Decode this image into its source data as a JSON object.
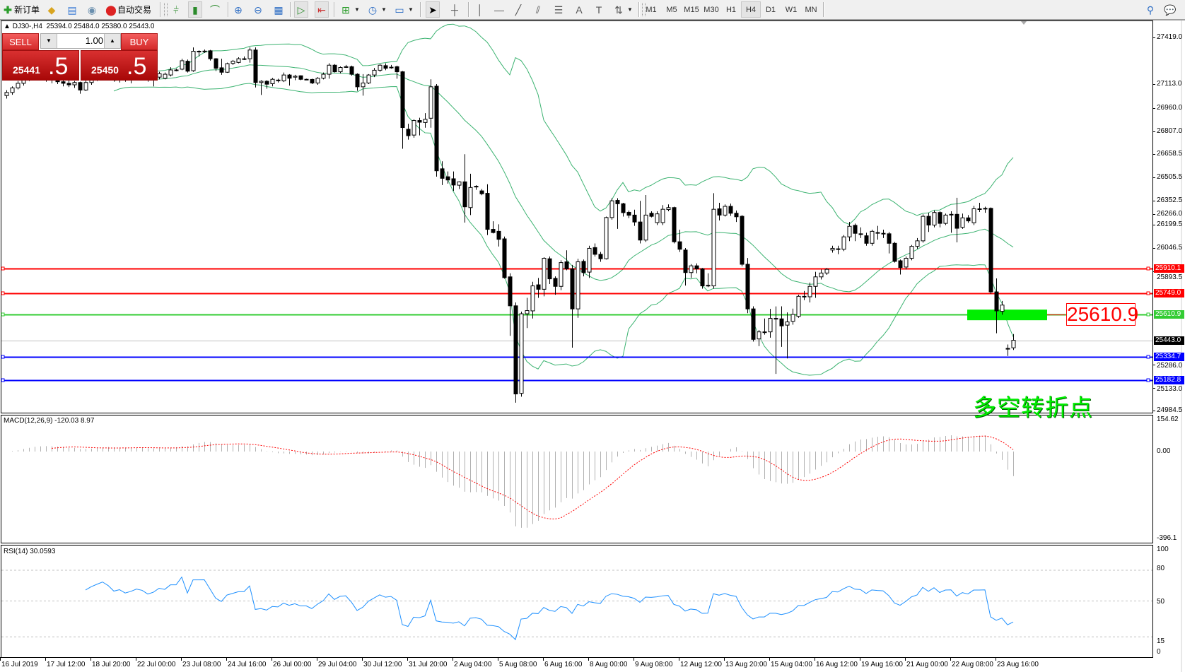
{
  "toolbar": {
    "new_order": "新订单",
    "auto_trading": "自动交易",
    "timeframes": [
      "M1",
      "M5",
      "M15",
      "M30",
      "H1",
      "H4",
      "D1",
      "W1",
      "MN"
    ],
    "active_timeframe": "H4"
  },
  "chart_header": {
    "symbol": "DJ30-,H4",
    "ohlc": "25394.0 25484.0 25380.0 25443.0"
  },
  "trade_panel": {
    "sell_label": "SELL",
    "buy_label": "BUY",
    "lot": "1.00",
    "sell_price_main": "25441",
    "sell_price_pips": ".5",
    "buy_price_main": "25450",
    "buy_price_pips": ".5"
  },
  "annotation": {
    "callout_price": "25610.9",
    "text": "多空转折点",
    "text_color": "#00ee00",
    "zone_color": "#00ee00"
  },
  "levels": [
    {
      "price": 25910.1,
      "label": "25910.1",
      "color": "#ff0000"
    },
    {
      "price": 25749.0,
      "label": "25749.0",
      "color": "#ff0000"
    },
    {
      "price": 25610.9,
      "label": "25610.9",
      "color": "#33cc33"
    },
    {
      "price": 25443.0,
      "label": "25443.0",
      "color": "#000000",
      "line_color": "#c0c0c0"
    },
    {
      "price": 25334.7,
      "label": "25334.7",
      "color": "#0000ff"
    },
    {
      "price": 25182.8,
      "label": "25182.8",
      "color": "#0000ff"
    }
  ],
  "indicators": {
    "macd_label": "MACD(12,26,9) -120.03 8.97",
    "rsi_label": "RSI(14) 30.0593",
    "macd_axis": [
      "154.62",
      "0.00",
      "-396.1"
    ],
    "rsi_axis": [
      "100",
      "80",
      "50",
      "15",
      "0"
    ]
  },
  "chart_data": {
    "type": "candlestick",
    "symbol": "DJ30-",
    "timeframe": "H4",
    "price_ticks": [
      "27419.0",
      "26266.0",
      "27113.0",
      "26960.0",
      "26807.0",
      "26658.5",
      "26505.5",
      "26352.5",
      "26199.5",
      "26046.5",
      "25893.5",
      "25286.0",
      "25133.0",
      "24984.5"
    ],
    "ylim": [
      24984.5,
      27419.0
    ],
    "time_labels": [
      "16 Jul 2019",
      "17 Jul 12:00",
      "18 Jul 20:00",
      "22 Jul 00:00",
      "23 Jul 08:00",
      "24 Jul 16:00",
      "26 Jul 00:00",
      "29 Jul 04:00",
      "30 Jul 12:00",
      "31 Jul 20:00",
      "2 Aug 04:00",
      "5 Aug 08:00",
      "6 Aug 16:00",
      "8 Aug 00:00",
      "9 Aug 08:00",
      "12 Aug 12:00",
      "13 Aug 20:00",
      "15 Aug 04:00",
      "16 Aug 12:00",
      "19 Aug 16:00",
      "21 Aug 00:00",
      "22 Aug 08:00",
      "23 Aug 16:00"
    ],
    "bollinger": {
      "period": 20,
      "deviation": 2,
      "color": "#3cb371"
    },
    "macd": {
      "fast": 12,
      "slow": 26,
      "signal": 9,
      "ylim": [
        -396.1,
        154.62
      ]
    },
    "rsi": {
      "period": 14,
      "levels": [
        80,
        50,
        15
      ],
      "color": "#1e90ff"
    },
    "ohlc": [
      [
        27040,
        27075,
        27020,
        27060
      ],
      [
        27060,
        27100,
        27045,
        27090
      ],
      [
        27090,
        27135,
        27080,
        27120
      ],
      [
        27120,
        27165,
        27105,
        27150
      ],
      [
        27150,
        27190,
        27135,
        27170
      ],
      [
        27170,
        27200,
        27150,
        27180
      ],
      [
        27180,
        27190,
        27140,
        27160
      ],
      [
        27160,
        27175,
        27130,
        27150
      ],
      [
        27150,
        27165,
        27120,
        27140
      ],
      [
        27140,
        27160,
        27115,
        27130
      ],
      [
        27130,
        27150,
        27100,
        27120
      ],
      [
        27120,
        27140,
        27095,
        27110
      ],
      [
        27110,
        27135,
        27090,
        27125
      ],
      [
        27125,
        27130,
        27052,
        27076
      ],
      [
        27076,
        27140,
        27070,
        27125
      ],
      [
        27125,
        27160,
        27110,
        27150
      ],
      [
        27150,
        27185,
        27135,
        27170
      ],
      [
        27170,
        27200,
        27150,
        27190
      ],
      [
        27190,
        27215,
        27160,
        27175
      ],
      [
        27175,
        27190,
        27130,
        27150
      ],
      [
        27150,
        27175,
        27125,
        27160
      ],
      [
        27160,
        27180,
        27130,
        27145
      ],
      [
        27145,
        27170,
        27120,
        27155
      ],
      [
        27155,
        27180,
        27140,
        27170
      ],
      [
        27170,
        27190,
        27150,
        27165
      ],
      [
        27165,
        27185,
        27130,
        27150
      ],
      [
        27150,
        27170,
        27100,
        27160
      ],
      [
        27160,
        27195,
        27145,
        27183
      ],
      [
        27153,
        27190,
        27145,
        27179
      ],
      [
        27174,
        27225,
        27165,
        27207
      ],
      [
        27207,
        27215,
        27198,
        27207
      ],
      [
        27212,
        27280,
        27205,
        27267
      ],
      [
        27264,
        27275,
        27190,
        27199
      ],
      [
        27202,
        27354,
        27195,
        27329
      ],
      [
        27329,
        27335,
        27295,
        27329
      ],
      [
        27325,
        27340,
        27318,
        27330
      ],
      [
        27332,
        27338,
        27268,
        27280
      ],
      [
        27280,
        27285,
        27200,
        27218
      ],
      [
        27221,
        27280,
        27175,
        27192
      ],
      [
        27192,
        27255,
        27188,
        27248
      ],
      [
        27250,
        27272,
        27240,
        27264
      ],
      [
        27256,
        27290,
        27250,
        27280
      ],
      [
        27280,
        27295,
        27272,
        27280
      ],
      [
        27280,
        27354,
        27255,
        27337
      ],
      [
        27337,
        27354,
        27093,
        27125
      ],
      [
        27125,
        27140,
        27044,
        27133
      ],
      [
        27133,
        27140,
        27085,
        27114
      ],
      [
        27117,
        27155,
        27100,
        27146
      ],
      [
        27141,
        27150,
        27125,
        27141
      ],
      [
        27136,
        27190,
        27128,
        27174
      ],
      [
        27174,
        27180,
        27105,
        27153
      ],
      [
        27160,
        27175,
        27140,
        27166
      ],
      [
        27169,
        27172,
        27140,
        27146
      ],
      [
        27146,
        27150,
        27142,
        27146
      ],
      [
        27145,
        27150,
        27115,
        27122
      ],
      [
        27122,
        27160,
        27110,
        27153
      ],
      [
        27153,
        27190,
        27145,
        27179
      ],
      [
        27179,
        27251,
        27150,
        27238
      ],
      [
        27238,
        27245,
        27190,
        27195
      ],
      [
        27195,
        27230,
        27185,
        27223
      ],
      [
        27228,
        27240,
        27220,
        27228
      ],
      [
        27228,
        27235,
        27170,
        27179
      ],
      [
        27179,
        27185,
        27071,
        27097
      ],
      [
        27097,
        27180,
        27039,
        27122
      ],
      [
        27122,
        27180,
        27115,
        27174
      ],
      [
        27174,
        27220,
        27160,
        27205
      ],
      [
        27205,
        27245,
        27195,
        27238
      ],
      [
        27235,
        27250,
        27205,
        27218
      ],
      [
        27222,
        27240,
        27215,
        27225
      ],
      [
        27228,
        27235,
        27150,
        27195
      ],
      [
        27195,
        27200,
        26693,
        26831
      ],
      [
        26820,
        26856,
        26752,
        26778
      ],
      [
        26782,
        26885,
        26765,
        26877
      ],
      [
        26877,
        26895,
        26780,
        26866
      ],
      [
        26864,
        26925,
        26830,
        26885
      ],
      [
        26892,
        27146,
        26830,
        27097
      ],
      [
        27101,
        27115,
        26511,
        26549
      ],
      [
        26562,
        26611,
        26456,
        26500
      ],
      [
        26510,
        26545,
        26465,
        26489
      ],
      [
        26497,
        26545,
        26418,
        26456
      ],
      [
        26455,
        26480,
        26430,
        26477
      ],
      [
        26477,
        26657,
        26211,
        26314
      ],
      [
        26309,
        26530,
        26260,
        26440
      ],
      [
        26445,
        26455,
        26425,
        26448
      ],
      [
        26418,
        26430,
        26390,
        26399
      ],
      [
        26402,
        26461,
        26130,
        26167
      ],
      [
        26167,
        26220,
        26140,
        26146
      ],
      [
        26154,
        26200,
        26055,
        26102
      ],
      [
        26105,
        26120,
        25845,
        25852
      ],
      [
        25857,
        25880,
        25472,
        25668
      ],
      [
        25668,
        25690,
        25036,
        25093
      ],
      [
        25097,
        25630,
        25075,
        25616
      ],
      [
        25616,
        25720,
        25523,
        25637
      ],
      [
        25635,
        25825,
        25585,
        25798
      ],
      [
        25805,
        25850,
        25720,
        25776
      ],
      [
        25776,
        25985,
        25730,
        25978
      ],
      [
        25975,
        25990,
        25810,
        25844
      ],
      [
        25847,
        25860,
        25740,
        25795
      ],
      [
        25795,
        25965,
        25770,
        25950
      ],
      [
        25955,
        26030,
        25900,
        25909
      ],
      [
        25909,
        25935,
        25395,
        25648
      ],
      [
        25648,
        25975,
        25590,
        25955
      ],
      [
        25958,
        25970,
        25860,
        25885
      ],
      [
        25888,
        26060,
        25850,
        26043
      ],
      [
        26048,
        26075,
        25990,
        26004
      ],
      [
        26004,
        26020,
        25955,
        25975
      ],
      [
        25975,
        26250,
        25970,
        26244
      ],
      [
        26244,
        26370,
        26230,
        26353
      ],
      [
        26356,
        26370,
        26170,
        26334
      ],
      [
        26334,
        26340,
        26250,
        26276
      ],
      [
        26278,
        26290,
        26240,
        26259
      ],
      [
        26260,
        26295,
        26190,
        26215
      ],
      [
        26215,
        26353,
        26075,
        26097
      ],
      [
        26097,
        26391,
        26085,
        26260
      ],
      [
        26272,
        26285,
        26245,
        26252
      ],
      [
        26211,
        26285,
        26195,
        26268
      ],
      [
        26211,
        26325,
        26195,
        26298
      ],
      [
        26296,
        26330,
        26285,
        26309
      ],
      [
        26309,
        26315,
        26075,
        26086
      ],
      [
        26086,
        26165,
        26020,
        26037
      ],
      [
        26032,
        26045,
        25800,
        25885
      ],
      [
        25885,
        25940,
        25850,
        25929
      ],
      [
        25929,
        25945,
        25880,
        25909
      ],
      [
        25909,
        25915,
        25780,
        25798
      ],
      [
        25802,
        25880,
        25790,
        25802
      ],
      [
        25798,
        26403,
        25780,
        26298
      ],
      [
        26301,
        26340,
        26225,
        26260
      ],
      [
        26260,
        26330,
        26250,
        26317
      ],
      [
        26317,
        26335,
        26255,
        26272
      ],
      [
        26272,
        26290,
        26215,
        26249
      ],
      [
        26252,
        26260,
        25925,
        25939
      ],
      [
        25939,
        25980,
        25620,
        25648
      ],
      [
        25648,
        25665,
        25435,
        25449
      ],
      [
        25452,
        25510,
        25405,
        25498
      ],
      [
        25498,
        25585,
        25480,
        25498
      ],
      [
        25498,
        25648,
        25460,
        25586
      ],
      [
        25586,
        25664,
        25224,
        25586
      ],
      [
        25583,
        25665,
        25400,
        25537
      ],
      [
        25542,
        25625,
        25325,
        25563
      ],
      [
        25567,
        25650,
        25545,
        25612
      ],
      [
        25599,
        25740,
        25590,
        25730
      ],
      [
        25730,
        25765,
        25705,
        25730
      ],
      [
        25727,
        25820,
        25690,
        25795
      ],
      [
        25795,
        25890,
        25720,
        25857
      ],
      [
        25857,
        25905,
        25840,
        25882
      ],
      [
        25882,
        25915,
        25870,
        25906
      ],
      [
        26032,
        26060,
        26015,
        26043
      ],
      [
        26040,
        26060,
        26005,
        26037
      ],
      [
        26037,
        26130,
        26025,
        26118
      ],
      [
        26118,
        26215,
        26090,
        26187
      ],
      [
        26193,
        26205,
        26090,
        26141
      ],
      [
        26138,
        26180,
        26110,
        26135
      ],
      [
        26125,
        26145,
        26060,
        26076
      ],
      [
        26076,
        26165,
        26060,
        26154
      ],
      [
        26146,
        26190,
        26100,
        26146
      ],
      [
        26141,
        26165,
        26110,
        26141
      ],
      [
        26138,
        26150,
        26010,
        26076
      ],
      [
        26076,
        26085,
        25950,
        25958
      ],
      [
        25962,
        25970,
        25872,
        25918
      ],
      [
        25921,
        25990,
        25905,
        25978
      ],
      [
        25978,
        26065,
        25965,
        26056
      ],
      [
        26056,
        26110,
        26040,
        26092
      ],
      [
        26092,
        26265,
        26080,
        26252
      ],
      [
        26252,
        26275,
        26150,
        26195
      ],
      [
        26195,
        26290,
        26180,
        26277
      ],
      [
        26277,
        26285,
        26180,
        26206
      ],
      [
        26206,
        26270,
        26195,
        26260
      ],
      [
        26265,
        26285,
        26145,
        26265
      ],
      [
        26265,
        26373,
        26082,
        26174
      ],
      [
        26180,
        26270,
        26170,
        26242
      ],
      [
        26242,
        26260,
        26210,
        26222
      ],
      [
        26210,
        26320,
        26195,
        26301
      ],
      [
        26301,
        26340,
        26280,
        26301
      ],
      [
        26304,
        26315,
        26275,
        26304
      ],
      [
        26304,
        26310,
        25745,
        25759
      ],
      [
        25759,
        25847,
        25489,
        25635
      ],
      [
        25632,
        25700,
        25610,
        25673
      ],
      [
        25390,
        25416,
        25341,
        25390
      ],
      [
        25394,
        25484,
        25380,
        25443
      ]
    ]
  }
}
